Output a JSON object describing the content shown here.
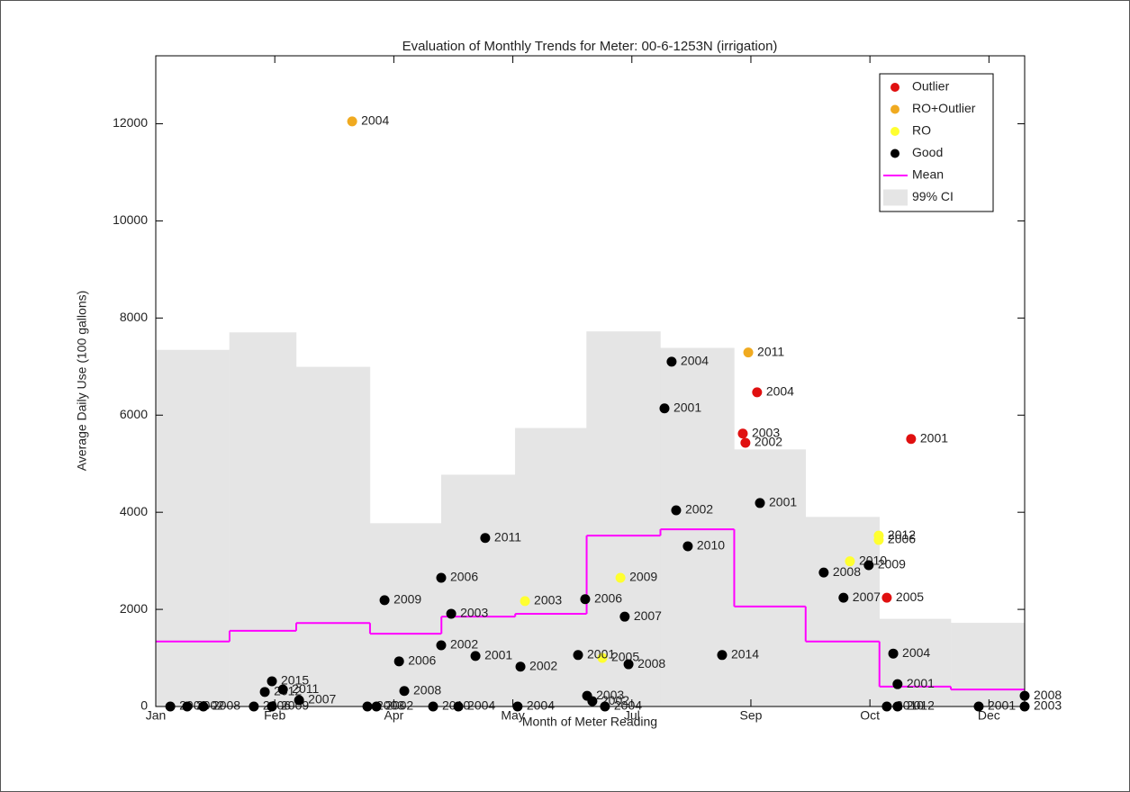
{
  "chart_data": {
    "type": "scatter",
    "title": "Evaluation of Monthly Trends for Meter: 00-6-1253N (irrigation)",
    "x_label": "Month of Meter Reading",
    "y_label": "Average Daily Use (100 gallons)",
    "xlim": [
      0,
      365
    ],
    "ylim": [
      0,
      13400
    ],
    "xticks": [
      {
        "value": 0,
        "label": "Jan"
      },
      {
        "value": 50,
        "label": "Feb"
      },
      {
        "value": 100,
        "label": "Apr"
      },
      {
        "value": 150,
        "label": "May"
      },
      {
        "value": 200,
        "label": "Jul"
      },
      {
        "value": 250,
        "label": "Sep"
      },
      {
        "value": 300,
        "label": "Oct"
      },
      {
        "value": 350,
        "label": "Dec"
      }
    ],
    "yticks": [
      0,
      2000,
      4000,
      6000,
      8000,
      10000,
      12000
    ],
    "legend": "upper right",
    "month_edges": [
      0,
      31,
      59,
      90,
      120,
      151,
      181,
      212,
      243,
      273,
      304,
      334,
      365
    ],
    "ci": {
      "name": "99% CI",
      "color": "#e5e5e5",
      "values": [
        7340,
        7700,
        6990,
        3770,
        4770,
        5730,
        7720,
        7380,
        5290,
        3900,
        1800,
        1720
      ]
    },
    "mean": {
      "name": "Mean",
      "color": "#ff00ff",
      "values": [
        1340,
        1560,
        1720,
        1500,
        1850,
        1910,
        3520,
        3650,
        2060,
        1340,
        410,
        350
      ]
    },
    "series": [
      {
        "name": "Outlier",
        "color": "#e01010",
        "x": [
          246.6,
          247.7,
          252.6,
          317.3,
          307.1
        ],
        "values": [
          5620,
          5430,
          6470,
          5510,
          2240
        ],
        "point_labels": [
          "2003",
          "2002",
          "2004",
          "2001",
          "2005"
        ]
      },
      {
        "name": "RO+Outlier",
        "color": "#f0aa20",
        "x": [
          82.5,
          248.9
        ],
        "values": [
          12050,
          7290
        ],
        "point_labels": [
          "2004",
          "2011"
        ]
      },
      {
        "name": "RO",
        "color": "#ffff30",
        "x": [
          155.1,
          187.6,
          195.2,
          291.6,
          303.7,
          303.7
        ],
        "values": [
          2170,
          1000,
          2650,
          2990,
          3520,
          3430
        ],
        "point_labels": [
          "2003",
          "2005",
          "2009",
          "2010",
          "2012",
          "2006"
        ]
      },
      {
        "name": "Good",
        "color": "#000000",
        "x": [
          6.1,
          13.2,
          20.0,
          41.2,
          48.8,
          45.8,
          48.8,
          53.4,
          60.2,
          88.9,
          92.7,
          96.1,
          102.2,
          104.4,
          116.5,
          119.9,
          119.9,
          124.1,
          127.1,
          134.3,
          138.4,
          152.0,
          153.2,
          177.4,
          180.4,
          181.2,
          183.4,
          188.7,
          197.0,
          198.6,
          213.7,
          216.7,
          218.6,
          223.5,
          237.9,
          253.8,
          280.6,
          288.9,
          299.5,
          307.1,
          311.6,
          309.8,
          311.6,
          345.7,
          365.0,
          365.0
        ],
        "values": [
          0,
          0,
          0,
          0,
          0,
          300,
          520,
          350,
          130,
          0,
          0,
          2190,
          930,
          320,
          0,
          1260,
          2650,
          1910,
          0,
          1040,
          3470,
          0,
          820,
          1060,
          2210,
          220,
          110,
          0,
          1850,
          870,
          6140,
          7100,
          4040,
          3300,
          1060,
          4190,
          2760,
          2240,
          2910,
          0,
          0,
          1090,
          460,
          0,
          0,
          220
        ],
        "point_labels": [
          "2003",
          "2002",
          "2008",
          "2006",
          "2009",
          "2012",
          "2015",
          "2011",
          "2007",
          "2003",
          "2002",
          "2009",
          "2006",
          "2008",
          "2010",
          "2002",
          "2006",
          "2003",
          "2004",
          "2001",
          "2011",
          "2004",
          "2002",
          "2001",
          "2006",
          "2003",
          "2002",
          "2004",
          "2007",
          "2008",
          "2001",
          "2004",
          "2002",
          "2010",
          "2014",
          "2001",
          "2008",
          "2007",
          "2009",
          "2010",
          "2012",
          "2004",
          "2001",
          "2001",
          "2003",
          "2008"
        ]
      }
    ]
  }
}
